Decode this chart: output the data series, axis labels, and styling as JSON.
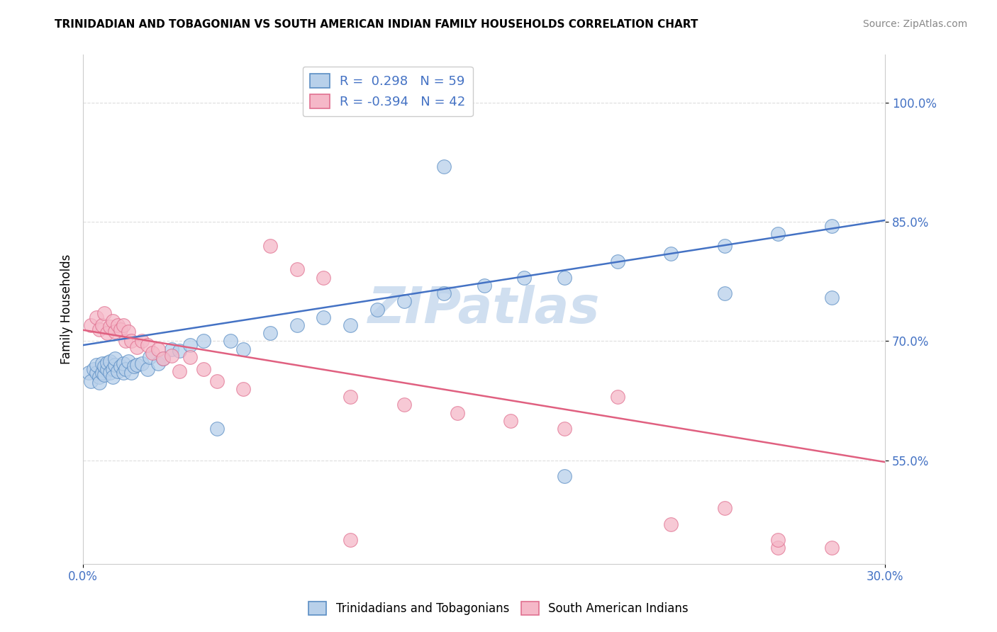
{
  "title": "TRINIDADIAN AND TOBAGONIAN VS SOUTH AMERICAN INDIAN FAMILY HOUSEHOLDS CORRELATION CHART",
  "source": "Source: ZipAtlas.com",
  "ylabel": "Family Households",
  "yticks_labels": [
    "55.0%",
    "70.0%",
    "85.0%",
    "100.0%"
  ],
  "ytick_values": [
    0.55,
    0.7,
    0.85,
    1.0
  ],
  "xlim": [
    0.0,
    0.3
  ],
  "ylim": [
    0.42,
    1.06
  ],
  "blue_R": 0.298,
  "blue_N": 59,
  "pink_R": -0.394,
  "pink_N": 42,
  "legend_label_blue": "Trinidadians and Tobagonians",
  "legend_label_pink": "South American Indians",
  "blue_fill_color": "#b8d0ea",
  "pink_fill_color": "#f5b8c8",
  "blue_edge_color": "#5b8ec4",
  "pink_edge_color": "#e07090",
  "blue_line_color": "#4472c4",
  "pink_line_color": "#e06080",
  "tick_color": "#4472c4",
  "watermark_color": "#d0dff0",
  "blue_line_y0": 0.695,
  "blue_line_y1": 0.852,
  "pink_line_y0": 0.714,
  "pink_line_y1": 0.548,
  "blue_scatter_x": [
    0.002,
    0.003,
    0.004,
    0.005,
    0.005,
    0.006,
    0.006,
    0.007,
    0.007,
    0.008,
    0.008,
    0.009,
    0.009,
    0.01,
    0.01,
    0.011,
    0.011,
    0.012,
    0.012,
    0.013,
    0.014,
    0.015,
    0.015,
    0.016,
    0.017,
    0.018,
    0.019,
    0.02,
    0.022,
    0.024,
    0.025,
    0.028,
    0.03,
    0.033,
    0.036,
    0.04,
    0.045,
    0.05,
    0.055,
    0.06,
    0.07,
    0.08,
    0.09,
    0.1,
    0.11,
    0.12,
    0.135,
    0.15,
    0.165,
    0.18,
    0.2,
    0.22,
    0.24,
    0.26,
    0.28,
    0.135,
    0.18,
    0.24,
    0.28
  ],
  "blue_scatter_y": [
    0.66,
    0.65,
    0.665,
    0.66,
    0.67,
    0.655,
    0.648,
    0.66,
    0.672,
    0.658,
    0.668,
    0.665,
    0.673,
    0.66,
    0.675,
    0.665,
    0.655,
    0.67,
    0.678,
    0.662,
    0.668,
    0.66,
    0.672,
    0.665,
    0.675,
    0.66,
    0.668,
    0.67,
    0.672,
    0.665,
    0.68,
    0.672,
    0.678,
    0.69,
    0.688,
    0.695,
    0.7,
    0.59,
    0.7,
    0.69,
    0.71,
    0.72,
    0.73,
    0.72,
    0.74,
    0.75,
    0.76,
    0.77,
    0.78,
    0.53,
    0.8,
    0.81,
    0.82,
    0.835,
    0.845,
    0.92,
    0.78,
    0.76,
    0.755
  ],
  "pink_scatter_x": [
    0.003,
    0.005,
    0.006,
    0.007,
    0.008,
    0.009,
    0.01,
    0.011,
    0.012,
    0.013,
    0.014,
    0.015,
    0.016,
    0.017,
    0.018,
    0.02,
    0.022,
    0.024,
    0.026,
    0.028,
    0.03,
    0.033,
    0.036,
    0.04,
    0.045,
    0.05,
    0.06,
    0.07,
    0.08,
    0.09,
    0.1,
    0.12,
    0.14,
    0.16,
    0.18,
    0.2,
    0.22,
    0.24,
    0.26,
    0.28,
    0.1,
    0.26
  ],
  "pink_scatter_y": [
    0.72,
    0.73,
    0.715,
    0.72,
    0.735,
    0.71,
    0.718,
    0.725,
    0.712,
    0.72,
    0.715,
    0.72,
    0.7,
    0.712,
    0.7,
    0.692,
    0.7,
    0.695,
    0.685,
    0.69,
    0.678,
    0.682,
    0.662,
    0.68,
    0.665,
    0.65,
    0.64,
    0.82,
    0.79,
    0.78,
    0.63,
    0.62,
    0.61,
    0.6,
    0.59,
    0.63,
    0.47,
    0.49,
    0.44,
    0.44,
    0.45,
    0.45
  ]
}
